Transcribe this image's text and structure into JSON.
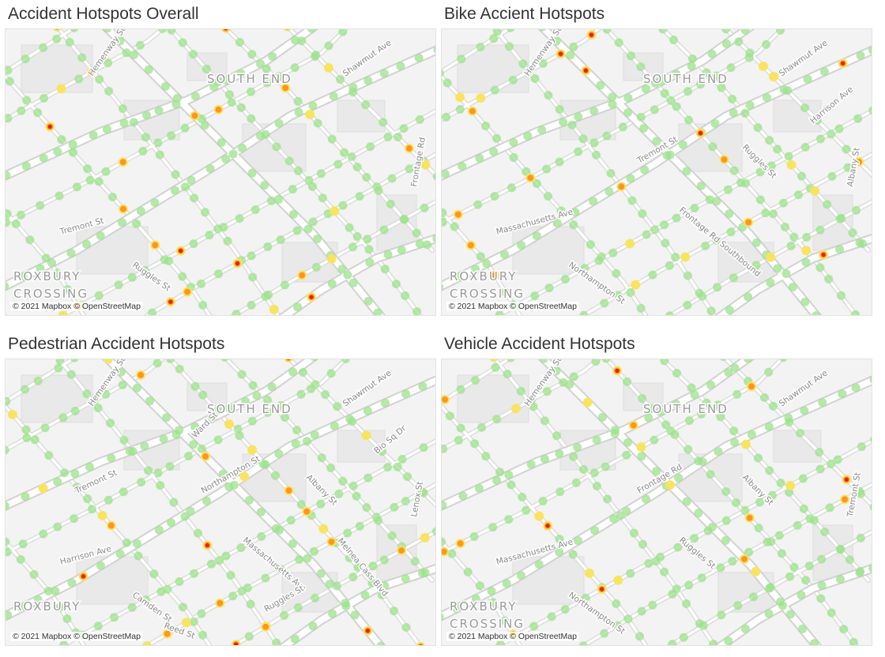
{
  "attribution": "© 2021 Mapbox © OpenStreetMap",
  "heat_colors": [
    "#9be28a",
    "#ffe35a",
    "#ff8c1a",
    "#e0201a"
  ],
  "panels": [
    {
      "title": "Accident Hotspots Overall",
      "neighborhoods": [
        "SOUTH END",
        "ROXBURY",
        "CROSSING"
      ],
      "streets": [
        "Hemenway St",
        "Shawmut Ave",
        "Tremont St",
        "Ruggles St",
        "Frontage Rd"
      ]
    },
    {
      "title": "Bike Accient Hotspots",
      "neighborhoods": [
        "SOUTH END",
        "ROXBURY",
        "CROSSING"
      ],
      "streets": [
        "Hemenway St",
        "Shawmut Ave",
        "Massachusetts Ave",
        "Northampton St",
        "Albany St",
        "Frontage Rd Southbound",
        "Tremont St",
        "Ruggles St",
        "Harrison Ave"
      ]
    },
    {
      "title": "Pedestrian Accident Hotspots",
      "neighborhoods": [
        "SOUTH END",
        "ROXBURY"
      ],
      "streets": [
        "Hemenway St",
        "Shawmut Ave",
        "Harrison Ave",
        "Camden St",
        "Lenox St",
        "Massachusetts Ave",
        "Northampton St",
        "Albany St",
        "Bio Sq Dr",
        "Reed St",
        "Tremont St",
        "Ruggles St",
        "Melnea Cass Blvd",
        "Ward St"
      ]
    },
    {
      "title": "Vehicle Accident Hotspots",
      "neighborhoods": [
        "SOUTH END",
        "ROXBURY",
        "CROSSING"
      ],
      "streets": [
        "Hemenway St",
        "Shawmut Ave",
        "Massachusetts Ave",
        "Northampton St",
        "Tremont St",
        "Ruggles St",
        "Frontage Rd",
        "Albany St"
      ]
    }
  ]
}
